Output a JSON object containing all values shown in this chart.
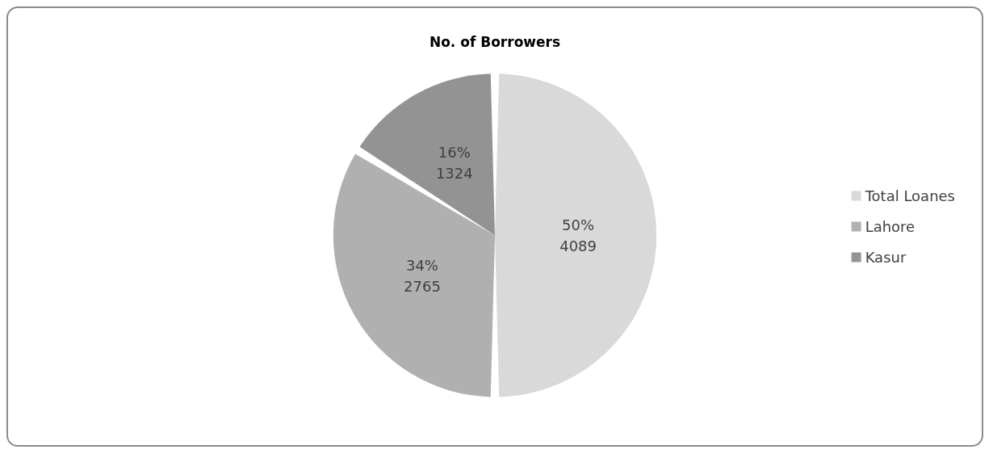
{
  "chart_data": {
    "type": "pie",
    "title": "No. of Borrowers",
    "categories": [
      "Total Loanes",
      "Lahore",
      "Kasur"
    ],
    "values": [
      4089,
      2765,
      1324
    ],
    "colors": [
      "#d9d9d9",
      "#b0b0b0",
      "#939393"
    ],
    "value_labels": [
      "50%\n4089",
      "34%\n2765",
      "16%\n1324"
    ],
    "legend": "right"
  }
}
